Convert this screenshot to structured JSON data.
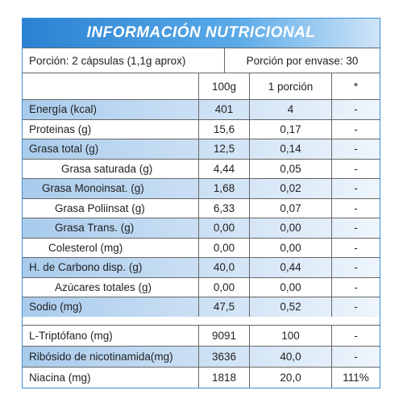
{
  "title": "INFORMACIÓN NUTRICIONAL",
  "serving": {
    "portion": "Porción: 2 cápsulas (1,1g aprox)",
    "per_container": "Porción por envase: 30"
  },
  "columns": [
    "100g",
    "1 porción",
    "*"
  ],
  "rows": [
    [
      "Energía (kcal)",
      "401",
      "4",
      "-"
    ],
    [
      "Proteinas (g)",
      "15,6",
      "0,17",
      "-"
    ],
    [
      "Grasa total (g)",
      "12,5",
      "0,14",
      "-"
    ],
    [
      "Grasa saturada (g)",
      "4,44",
      "0,05",
      "-"
    ],
    [
      "Grasa Monoinsat. (g)",
      "1,68",
      "0,02",
      "-"
    ],
    [
      "Grasa Poliinsat (g)",
      "6,33",
      "0,07",
      "-"
    ],
    [
      "Grasa Trans. (g)",
      "0,00",
      "0,00",
      "-"
    ],
    [
      "Colesterol (mg)",
      "0,00",
      "0,00",
      "-"
    ],
    [
      "H. de Carbono disp. (g)",
      "40,0",
      "0,44",
      "-"
    ],
    [
      "Azúcares totales (g)",
      "0,00",
      "0,00",
      "-"
    ],
    [
      "Sodio (mg)",
      "47,5",
      "0,52",
      "-"
    ]
  ],
  "extra_rows": [
    [
      "L-Triptófano (mg)",
      "9091",
      "100",
      "-"
    ],
    [
      "Ribósido de nicotinamida(mg)",
      "3636",
      "40,0",
      "-"
    ],
    [
      "Niacina (mg)",
      "1818",
      "20,0",
      "111%"
    ]
  ]
}
